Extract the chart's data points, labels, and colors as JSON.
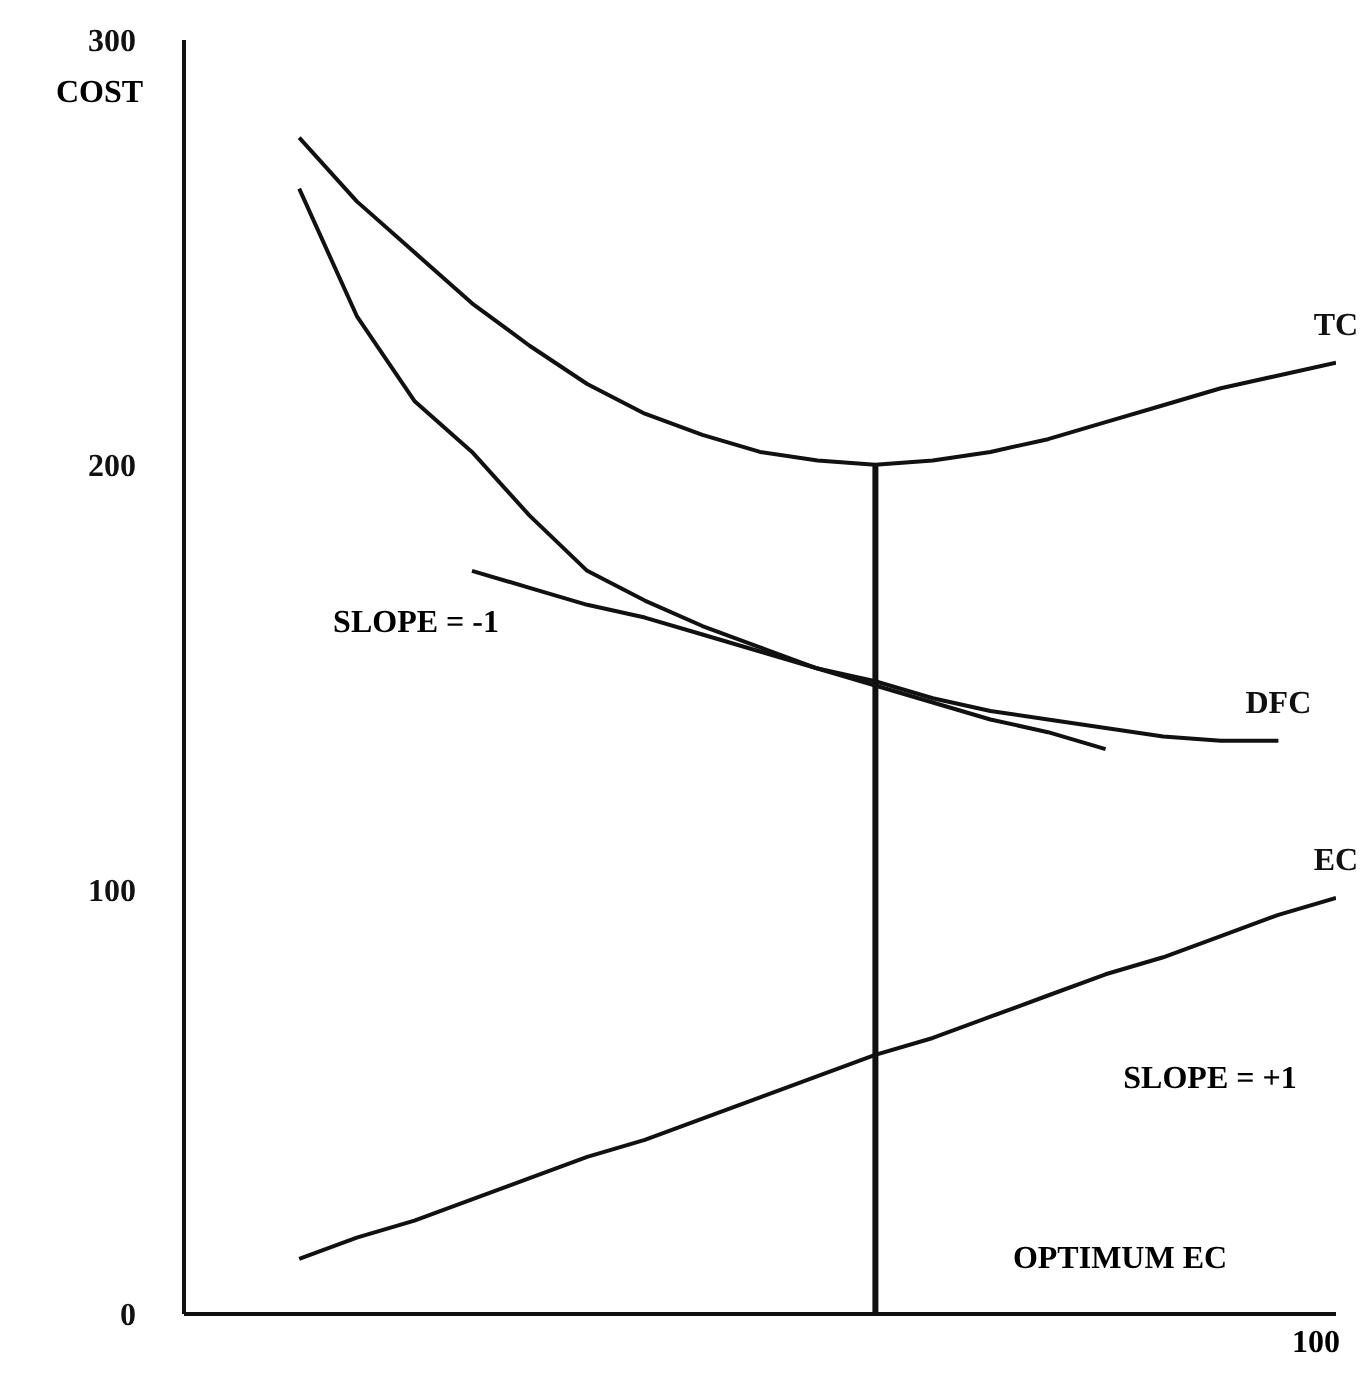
{
  "chart_data": {
    "type": "line",
    "ylabel": "COST",
    "categories": [
      null,
      null,
      null,
      null,
      null,
      null,
      null,
      null,
      null,
      null,
      null,
      null,
      null,
      null,
      null,
      null,
      null,
      null,
      null
    ],
    "ylim": [
      0,
      300
    ],
    "yticks": [
      0,
      100,
      200,
      300
    ],
    "grid": false,
    "legend": false,
    "marker": "none",
    "line_style": "solid",
    "series": [
      {
        "name": "TC",
        "color": "#111111",
        "values": [
          277,
          262,
          250,
          238,
          228,
          219,
          212,
          207,
          203,
          201,
          200,
          201,
          203,
          206,
          210,
          214,
          218,
          221,
          224
        ]
      },
      {
        "name": "DFC",
        "color": "#111111",
        "values": [
          265,
          235,
          215,
          203,
          188,
          175,
          168,
          162,
          157,
          152,
          149,
          145,
          142,
          140,
          138,
          136,
          135,
          135,
          null
        ]
      },
      {
        "name": "EC",
        "color": "#111111",
        "values": [
          13,
          18,
          22,
          27,
          32,
          37,
          41,
          46,
          51,
          56,
          61,
          65,
          70,
          75,
          80,
          84,
          89,
          94,
          98
        ]
      },
      {
        "color": "#111111",
        "values": [
          null,
          null,
          null,
          175,
          171,
          167,
          164,
          160,
          156,
          152,
          148,
          144,
          140,
          137,
          133,
          null,
          null,
          null,
          null
        ]
      },
      {
        "type": "bar",
        "color": "#111111",
        "values": [
          null,
          null,
          null,
          null,
          null,
          null,
          null,
          null,
          null,
          null,
          200,
          null,
          null,
          null,
          null,
          null,
          null,
          null,
          null
        ]
      }
    ],
    "annotations": [
      "SLOPE = -1",
      "SLOPE = +1",
      "OPTIMUM EC",
      "100"
    ]
  }
}
